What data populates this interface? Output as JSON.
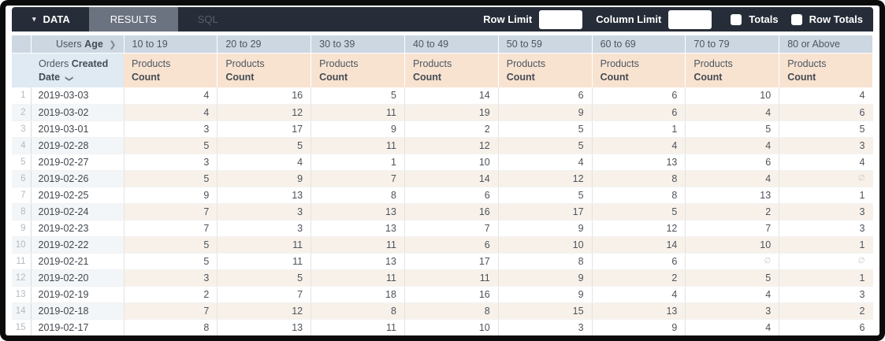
{
  "toolbar": {
    "tabs": {
      "data": "DATA",
      "results": "RESULTS",
      "sql": "SQL"
    },
    "active_tab": "RESULTS",
    "row_limit_label": "Row Limit",
    "row_limit_value": "",
    "column_limit_label": "Column Limit",
    "column_limit_value": "",
    "totals_label": "Totals",
    "totals_checked": false,
    "row_totals_label": "Row Totals",
    "row_totals_checked": false
  },
  "icons": {
    "caret_down": "▾",
    "chevron_right": "❯",
    "chevron_down": "❯"
  },
  "colors": {
    "toolbar_bg": "#262d38",
    "results_tab_bg": "#6b7280",
    "header_blue": "#ccd7e2",
    "header_blue_light": "#dfeaf2",
    "header_peach": "#f8e3d1",
    "stripe_peach": "#f8f1ea",
    "stripe_blue": "#f3f6f8"
  },
  "table": {
    "pivot_header": {
      "prefix": "Users",
      "bold": "Age"
    },
    "dimension_header": {
      "prefix": "Orders",
      "bold": "Created Date"
    },
    "measure_header": {
      "prefix": "Products",
      "bold": "Count"
    },
    "age_buckets": [
      "10 to 19",
      "20 to 29",
      "30 to 39",
      "40 to 49",
      "50 to 59",
      "60 to 69",
      "70 to 79",
      "80 or Above"
    ],
    "null_symbol": "∅",
    "rows": [
      {
        "index": 1,
        "date": "2019-03-03",
        "values": [
          4,
          16,
          5,
          14,
          6,
          6,
          10,
          4
        ]
      },
      {
        "index": 2,
        "date": "2019-03-02",
        "values": [
          4,
          12,
          11,
          19,
          9,
          6,
          4,
          6
        ]
      },
      {
        "index": 3,
        "date": "2019-03-01",
        "values": [
          3,
          17,
          9,
          2,
          5,
          1,
          5,
          5
        ]
      },
      {
        "index": 4,
        "date": "2019-02-28",
        "values": [
          5,
          5,
          11,
          12,
          5,
          4,
          4,
          3
        ]
      },
      {
        "index": 5,
        "date": "2019-02-27",
        "values": [
          3,
          4,
          1,
          10,
          4,
          13,
          6,
          4
        ]
      },
      {
        "index": 6,
        "date": "2019-02-26",
        "values": [
          5,
          9,
          7,
          14,
          12,
          8,
          4,
          null
        ]
      },
      {
        "index": 7,
        "date": "2019-02-25",
        "values": [
          9,
          13,
          8,
          6,
          5,
          8,
          13,
          1
        ]
      },
      {
        "index": 8,
        "date": "2019-02-24",
        "values": [
          7,
          3,
          13,
          16,
          17,
          5,
          2,
          3
        ]
      },
      {
        "index": 9,
        "date": "2019-02-23",
        "values": [
          7,
          3,
          13,
          7,
          9,
          12,
          7,
          3
        ]
      },
      {
        "index": 10,
        "date": "2019-02-22",
        "values": [
          5,
          11,
          11,
          6,
          10,
          14,
          10,
          1
        ]
      },
      {
        "index": 11,
        "date": "2019-02-21",
        "values": [
          5,
          11,
          13,
          17,
          8,
          6,
          null,
          null
        ]
      },
      {
        "index": 12,
        "date": "2019-02-20",
        "values": [
          3,
          5,
          11,
          11,
          9,
          2,
          5,
          1
        ]
      },
      {
        "index": 13,
        "date": "2019-02-19",
        "values": [
          2,
          7,
          18,
          16,
          9,
          4,
          4,
          3
        ]
      },
      {
        "index": 14,
        "date": "2019-02-18",
        "values": [
          7,
          12,
          8,
          8,
          15,
          13,
          3,
          2
        ]
      },
      {
        "index": 15,
        "date": "2019-02-17",
        "values": [
          8,
          13,
          11,
          10,
          3,
          9,
          4,
          6
        ]
      }
    ]
  }
}
